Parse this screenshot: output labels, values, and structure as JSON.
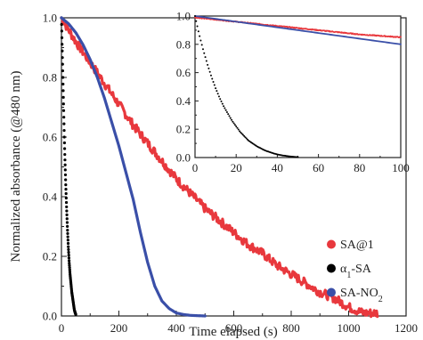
{
  "chart_data": [
    {
      "type": "line",
      "xlabel": "Time elapsed (s)",
      "ylabel": "Normalized absorbance (@480 nm)",
      "xlim": [
        0,
        1200
      ],
      "ylim": [
        0,
        1.0
      ],
      "xticks": [
        "0",
        "200",
        "400",
        "600",
        "800",
        "1000",
        "1200"
      ],
      "yticks": [
        "0.0",
        "0.2",
        "0.4",
        "0.6",
        "0.8",
        "1.0"
      ],
      "legend": {
        "placement": "bottom-right",
        "entries": [
          {
            "text": "SA@1",
            "color": "#e8383d"
          },
          {
            "text": "α",
            "sub": "1",
            "text_after": "-SA",
            "color": "#000000"
          },
          {
            "text": "SA-NO",
            "sub": "2",
            "color": "#3a4fa8"
          }
        ]
      },
      "series": [
        {
          "name": "SA@1",
          "color": "#e8383d",
          "style": "noisy-thick",
          "x": [
            0,
            50,
            100,
            150,
            200,
            250,
            300,
            350,
            400,
            450,
            500,
            550,
            600,
            650,
            700,
            750,
            800,
            850,
            900,
            950,
            1000,
            1050,
            1100
          ],
          "y": [
            1.0,
            0.92,
            0.85,
            0.78,
            0.71,
            0.64,
            0.58,
            0.52,
            0.46,
            0.41,
            0.36,
            0.32,
            0.28,
            0.24,
            0.21,
            0.17,
            0.14,
            0.11,
            0.08,
            0.06,
            0.03,
            0.01,
            0.01
          ]
        },
        {
          "name": "α1-SA",
          "color": "#000000",
          "style": "dots",
          "x": [
            0,
            2,
            4,
            6,
            8,
            10,
            12,
            15,
            18,
            21,
            24,
            27,
            30,
            33,
            36,
            39,
            42,
            45,
            48,
            50
          ],
          "y": [
            1.0,
            0.92,
            0.84,
            0.76,
            0.68,
            0.6,
            0.53,
            0.44,
            0.36,
            0.29,
            0.23,
            0.18,
            0.14,
            0.11,
            0.08,
            0.06,
            0.04,
            0.02,
            0.01,
            0.005
          ]
        },
        {
          "name": "SA-NO2",
          "color": "#3a4fa8",
          "style": "thick",
          "x": [
            0,
            25,
            50,
            75,
            100,
            125,
            150,
            175,
            200,
            225,
            250,
            275,
            300,
            325,
            350,
            375,
            400,
            425,
            450,
            475,
            500
          ],
          "y": [
            1.0,
            0.98,
            0.95,
            0.91,
            0.86,
            0.8,
            0.73,
            0.65,
            0.57,
            0.48,
            0.39,
            0.28,
            0.18,
            0.1,
            0.05,
            0.025,
            0.01,
            0.005,
            0.002,
            0.001,
            0.0
          ]
        }
      ]
    },
    {
      "type": "line",
      "role": "inset",
      "xlim": [
        0,
        100
      ],
      "ylim": [
        0,
        1.0
      ],
      "xticks": [
        "0",
        "20",
        "40",
        "60",
        "80",
        "100"
      ],
      "yticks": [
        "0.0",
        "0.2",
        "0.4",
        "0.6",
        "0.8",
        "1.0"
      ],
      "series": [
        {
          "name": "SA@1",
          "color": "#e8383d",
          "style": "noisy",
          "x": [
            0,
            10,
            20,
            30,
            40,
            50,
            60,
            70,
            80,
            90,
            100
          ],
          "y": [
            0.99,
            0.975,
            0.96,
            0.945,
            0.93,
            0.915,
            0.9,
            0.885,
            0.87,
            0.86,
            0.85
          ]
        },
        {
          "name": "SA-NO2",
          "color": "#3a4fa8",
          "style": "line",
          "x": [
            0,
            10,
            20,
            30,
            40,
            50,
            60,
            70,
            80,
            90,
            100
          ],
          "y": [
            1.0,
            0.98,
            0.96,
            0.94,
            0.92,
            0.9,
            0.88,
            0.86,
            0.84,
            0.82,
            0.8
          ]
        },
        {
          "name": "α1-SA",
          "color": "#000000",
          "style": "dots",
          "x": [
            0,
            2,
            4,
            6,
            8,
            10,
            12,
            14,
            16,
            18,
            20,
            22,
            24,
            26,
            28,
            30,
            32,
            34,
            36,
            38,
            40,
            42,
            44,
            46,
            48,
            50
          ],
          "y": [
            1.0,
            0.87,
            0.76,
            0.66,
            0.57,
            0.49,
            0.42,
            0.36,
            0.31,
            0.26,
            0.22,
            0.18,
            0.15,
            0.12,
            0.1,
            0.08,
            0.065,
            0.05,
            0.04,
            0.03,
            0.022,
            0.016,
            0.012,
            0.008,
            0.005,
            0.003
          ]
        }
      ]
    }
  ]
}
